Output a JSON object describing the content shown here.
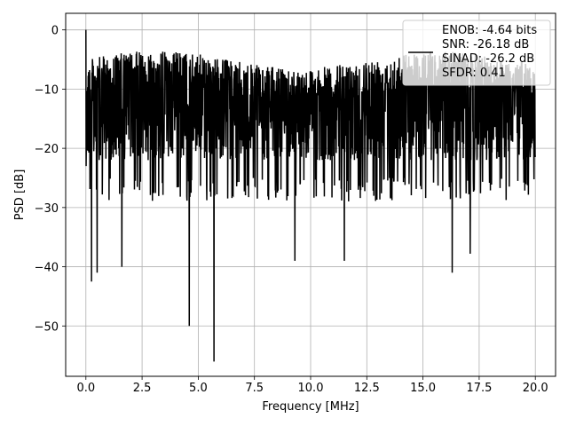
{
  "chart_data": {
    "type": "line",
    "title": "",
    "xlabel": "Frequency [MHz]",
    "ylabel": "PSD [dB]",
    "xlim": [
      -0.9,
      20.9
    ],
    "ylim": [
      -58.5,
      2.8
    ],
    "xticks": [
      0.0,
      2.5,
      5.0,
      7.5,
      10.0,
      12.5,
      15.0,
      17.5,
      20.0
    ],
    "xtick_labels": [
      "0.0",
      "2.5",
      "5.0",
      "7.5",
      "10.0",
      "12.5",
      "15.0",
      "17.5",
      "20.0"
    ],
    "yticks": [
      0,
      -10,
      -20,
      -30,
      -40,
      -50
    ],
    "ytick_labels": [
      "0",
      "−10",
      "−20",
      "−30",
      "−40",
      "−50"
    ],
    "grid": true,
    "legend_position": "top-right",
    "legend_lines": [
      "ENOB: -4.64 bits",
      "SNR: -26.18 dB",
      "SINAD: -26.2 dB",
      "SFDR: 0.41"
    ],
    "series": [
      {
        "color": "#000000",
        "note": "noise-like power spectral density trace, approx. 2000 points from 0 to 20 MHz",
        "x_range": [
          0.0,
          20.0
        ],
        "peak": {
          "x": 0.0,
          "y": 0.0
        },
        "envelope_upper_approx": -5,
        "envelope_lower_typical": -25,
        "deep_nulls": [
          {
            "x": 0.25,
            "y": -42.5
          },
          {
            "x": 0.5,
            "y": -41.0
          },
          {
            "x": 1.6,
            "y": -40.0
          },
          {
            "x": 4.6,
            "y": -50.0
          },
          {
            "x": 5.7,
            "y": -56.0
          },
          {
            "x": 9.3,
            "y": -39.0
          },
          {
            "x": 11.5,
            "y": -39.0
          },
          {
            "x": 16.3,
            "y": -41.0
          },
          {
            "x": 17.1,
            "y": -37.8
          }
        ]
      }
    ]
  }
}
